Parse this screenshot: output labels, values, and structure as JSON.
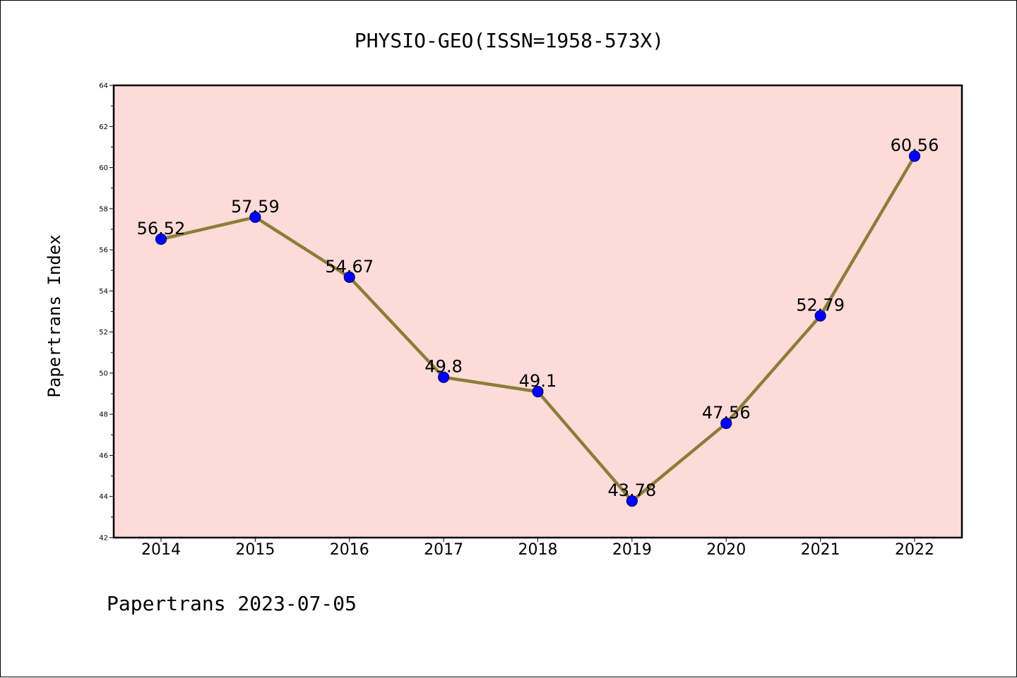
{
  "chart_data": {
    "type": "line",
    "title": "PHYSIO-GEO(ISSN=1958-573X)",
    "ylabel": "Papertrans Index",
    "xlabel": "",
    "footer": "Papertrans 2023-07-05",
    "categories": [
      "2014",
      "2015",
      "2016",
      "2017",
      "2018",
      "2019",
      "2020",
      "2021",
      "2022"
    ],
    "series": [
      {
        "values": [
          56.52,
          57.59,
          54.67,
          49.8,
          49.1,
          43.78,
          47.56,
          52.79,
          60.56
        ],
        "labels": [
          "56.52",
          "57.59",
          "54.67",
          "49.8",
          "49.1",
          "43.78",
          "47.56",
          "52.79",
          "60.56"
        ]
      }
    ],
    "ylim": [
      42,
      64
    ],
    "yticks": [
      42,
      44,
      46,
      48,
      50,
      52,
      54,
      56,
      58,
      60,
      62,
      64
    ],
    "grid": false,
    "legend": "none",
    "colors": {
      "plot_background": "#fddbd8",
      "line": "#8b7d3a",
      "marker": "#0000ff",
      "marker_edge": "#000080",
      "axes": "#000000"
    }
  }
}
